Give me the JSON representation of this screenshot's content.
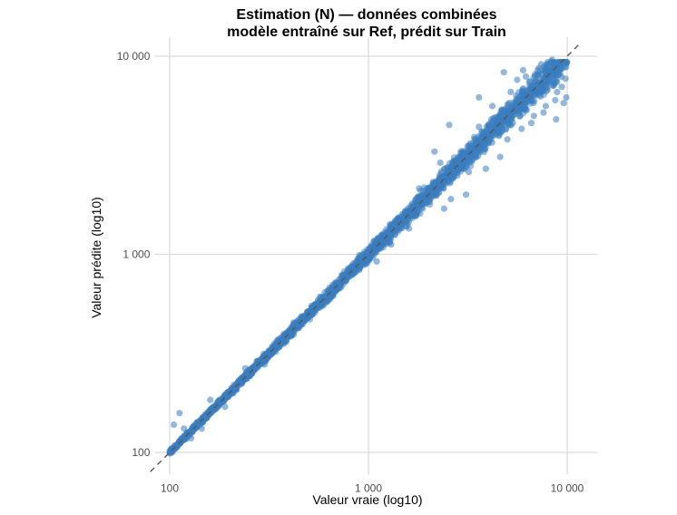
{
  "chart_data": {
    "type": "scatter",
    "title": [
      "Estimation (N) — données combinées",
      "modèle entraîné sur Ref, prédit sur Train"
    ],
    "xlabel": "Valeur vraie (log10)",
    "ylabel": "Valeur prédite (log10)",
    "x_scale": "log10",
    "y_scale": "log10",
    "xlim": [
      84,
      11500
    ],
    "ylim": [
      84,
      11500
    ],
    "x_ticks": [
      100,
      1000,
      10000
    ],
    "x_tick_labels": [
      "100",
      "1 000",
      "10 000"
    ],
    "y_ticks": [
      100,
      1000,
      10000
    ],
    "y_tick_labels": [
      "100",
      "1 000",
      "10 000"
    ],
    "grid": true,
    "legend": "none",
    "reference_line": "y = x (dashed)",
    "point_color": "#3a7dbf",
    "point_opacity": 0.55,
    "series": [
      {
        "points": [
          [
            100,
            101
          ],
          [
            103,
            104
          ],
          [
            106,
            108
          ],
          [
            108,
            107
          ],
          [
            112,
            113
          ],
          [
            115,
            118
          ],
          [
            118,
            116
          ],
          [
            122,
            124
          ],
          [
            126,
            125
          ],
          [
            130,
            133
          ],
          [
            135,
            134
          ],
          [
            140,
            143
          ],
          [
            146,
            144
          ],
          [
            151,
            155
          ],
          [
            157,
            154
          ],
          [
            163,
            167
          ],
          [
            170,
            168
          ],
          [
            176,
            181
          ],
          [
            183,
            180
          ],
          [
            190,
            195
          ],
          [
            198,
            194
          ],
          [
            206,
            211
          ],
          [
            214,
            210
          ],
          [
            223,
            229
          ],
          [
            232,
            226
          ],
          [
            241,
            248
          ],
          [
            251,
            244
          ],
          [
            261,
            268
          ],
          [
            272,
            265
          ],
          [
            283,
            291
          ],
          [
            295,
            287
          ],
          [
            307,
            316
          ],
          [
            320,
            311
          ],
          [
            333,
            343
          ],
          [
            347,
            336
          ],
          [
            361,
            372
          ],
          [
            376,
            364
          ],
          [
            391,
            404
          ],
          [
            407,
            394
          ],
          [
            424,
            438
          ],
          [
            441,
            426
          ],
          [
            459,
            475
          ],
          [
            478,
            461
          ],
          [
            497,
            516
          ],
          [
            518,
            498
          ],
          [
            539,
            560
          ],
          [
            561,
            539
          ],
          [
            584,
            608
          ],
          [
            608,
            582
          ],
          [
            633,
            660
          ],
          [
            659,
            629
          ],
          [
            686,
            716
          ],
          [
            714,
            679
          ],
          [
            743,
            778
          ],
          [
            774,
            734
          ],
          [
            806,
            846
          ],
          [
            839,
            793
          ],
          [
            873,
            920
          ],
          [
            909,
            856
          ],
          [
            946,
            1000
          ],
          [
            985,
            925
          ],
          [
            1025,
            1088
          ],
          [
            1067,
            998
          ],
          [
            1111,
            1183
          ],
          [
            1156,
            1077
          ],
          [
            1204,
            1287
          ],
          [
            1253,
            1163
          ],
          [
            1305,
            1400
          ],
          [
            1358,
            1255
          ],
          [
            1414,
            1522
          ],
          [
            1472,
            1355
          ],
          [
            1532,
            1655
          ],
          [
            1595,
            1462
          ],
          [
            1660,
            1800
          ],
          [
            1728,
            1579
          ],
          [
            1799,
            1957
          ],
          [
            1873,
            1704
          ],
          [
            1950,
            2128
          ],
          [
            2030,
            1840
          ],
          [
            2113,
            2314
          ],
          [
            2200,
            1986
          ],
          [
            2290,
            2516
          ],
          [
            2384,
            2144
          ],
          [
            2482,
            2736
          ],
          [
            2584,
            2315
          ],
          [
            2690,
            2975
          ],
          [
            2800,
            2499
          ],
          [
            2915,
            3235
          ],
          [
            3034,
            2698
          ],
          [
            3159,
            3517
          ],
          [
            3288,
            2913
          ],
          [
            3423,
            3824
          ],
          [
            3564,
            3145
          ],
          [
            3710,
            4158
          ],
          [
            3862,
            3395
          ],
          [
            4020,
            4520
          ],
          [
            4185,
            3666
          ],
          [
            4357,
            4915
          ],
          [
            4536,
            3958
          ],
          [
            4722,
            5344
          ],
          [
            4915,
            4273
          ],
          [
            5117,
            5810
          ],
          [
            5327,
            4613
          ],
          [
            5545,
            6318
          ],
          [
            5773,
            4980
          ],
          [
            6009,
            6869
          ],
          [
            6256,
            5377
          ],
          [
            6512,
            7469
          ],
          [
            6779,
            5805
          ],
          [
            7058,
            8120
          ],
          [
            7347,
            6267
          ],
          [
            7648,
            8829
          ],
          [
            7962,
            6766
          ],
          [
            8289,
            9400
          ],
          [
            8629,
            7305
          ],
          [
            8983,
            9100
          ],
          [
            9351,
            7887
          ],
          [
            9735,
            8800
          ],
          [
            9900,
            6200
          ],
          [
            9800,
            9300
          ],
          [
            105,
            138
          ],
          [
            112,
            158
          ],
          [
            118,
            132
          ],
          [
            128,
            118
          ],
          [
            145,
            132
          ],
          [
            160,
            184
          ],
          [
            190,
            170
          ],
          [
            240,
            266
          ],
          [
            300,
            278
          ],
          [
            420,
            452
          ],
          [
            650,
            610
          ],
          [
            900,
            990
          ],
          [
            1300,
            1120
          ],
          [
            1800,
            2150
          ],
          [
            2300,
            2900
          ],
          [
            2600,
            1900
          ],
          [
            3200,
            2600
          ],
          [
            3600,
            4400
          ],
          [
            4200,
            5600
          ],
          [
            4600,
            3100
          ],
          [
            5200,
            6600
          ],
          [
            5900,
            4300
          ],
          [
            6200,
            7900
          ],
          [
            6800,
            5000
          ],
          [
            7400,
            9100
          ],
          [
            7800,
            5600
          ],
          [
            8400,
            9600
          ],
          [
            8700,
            6000
          ],
          [
            9200,
            8200
          ],
          [
            9600,
            5800
          ],
          [
            2150,
            3300
          ],
          [
            2550,
            4500
          ],
          [
            3600,
            6200
          ],
          [
            4800,
            8300
          ],
          [
            5600,
            7600
          ],
          [
            6000,
            8500
          ],
          [
            7200,
            8700
          ],
          [
            8000,
            8900
          ],
          [
            8800,
            4800
          ],
          [
            9400,
            7000
          ],
          [
            2400,
            1700
          ],
          [
            3100,
            2000
          ],
          [
            3900,
            2700
          ],
          [
            5000,
            3800
          ],
          [
            6600,
            4600
          ],
          [
            7600,
            5200
          ],
          [
            8900,
            6600
          ],
          [
            9800,
            7700
          ],
          [
            1600,
            1350
          ],
          [
            1100,
            920
          ]
        ]
      }
    ]
  }
}
